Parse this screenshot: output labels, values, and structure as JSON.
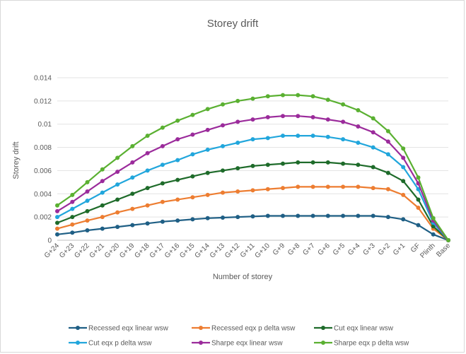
{
  "chart_data": {
    "type": "line",
    "title": "Storey drift",
    "xlabel": "Number of storey",
    "ylabel": "Storey drift",
    "ylim": [
      0,
      0.014
    ],
    "yticks": [
      "0",
      "0.002",
      "0.004",
      "0.006",
      "0.008",
      "0.01",
      "0.012",
      "0.014"
    ],
    "grid": true,
    "legend_position": "bottom",
    "categories": [
      "G+24",
      "G+23",
      "G+22",
      "G+21",
      "G+20",
      "G+19",
      "G+18",
      "G+17",
      "G+16",
      "G+15",
      "G+14",
      "G+13",
      "G+12",
      "G+11",
      "G+10",
      "G+9",
      "G+8",
      "G+7",
      "G+6",
      "G+5",
      "G+4",
      "G+3",
      "G+2",
      "G+1",
      "GF",
      "Plinth",
      "Base"
    ],
    "series": [
      {
        "name": "Recessed eqx linear wsw",
        "color": "#1f5f85",
        "values": [
          0.0005,
          0.00065,
          0.00085,
          0.001,
          0.00115,
          0.0013,
          0.00145,
          0.0016,
          0.0017,
          0.0018,
          0.0019,
          0.00195,
          0.002,
          0.00205,
          0.0021,
          0.0021,
          0.0021,
          0.0021,
          0.0021,
          0.0021,
          0.0021,
          0.0021,
          0.002,
          0.0018,
          0.0013,
          0.0005,
          0
        ]
      },
      {
        "name": "Recessed eqx p delta wsw",
        "color": "#ed7d31",
        "values": [
          0.001,
          0.00135,
          0.0017,
          0.002,
          0.0024,
          0.0027,
          0.003,
          0.0033,
          0.0035,
          0.0037,
          0.0039,
          0.0041,
          0.0042,
          0.0043,
          0.0044,
          0.0045,
          0.0046,
          0.0046,
          0.0046,
          0.0046,
          0.0046,
          0.0045,
          0.0044,
          0.0039,
          0.0028,
          0.001,
          0
        ]
      },
      {
        "name": "Cut eqx linear wsw",
        "color": "#1e6b2a",
        "values": [
          0.0015,
          0.002,
          0.0025,
          0.003,
          0.0035,
          0.004,
          0.0045,
          0.0049,
          0.0052,
          0.0055,
          0.0058,
          0.006,
          0.0062,
          0.0064,
          0.0065,
          0.0066,
          0.0067,
          0.0067,
          0.0067,
          0.0066,
          0.0065,
          0.0063,
          0.0058,
          0.0051,
          0.0035,
          0.0012,
          0
        ]
      },
      {
        "name": "Cut eqx p delta wsw",
        "color": "#21a6dc",
        "values": [
          0.002,
          0.0027,
          0.0034,
          0.0041,
          0.0048,
          0.0054,
          0.006,
          0.0065,
          0.0069,
          0.0074,
          0.0078,
          0.0081,
          0.0084,
          0.0087,
          0.0088,
          0.009,
          0.009,
          0.009,
          0.0089,
          0.0087,
          0.0084,
          0.008,
          0.0074,
          0.0063,
          0.0044,
          0.0015,
          0
        ]
      },
      {
        "name": "Sharpe eqx linear wsw",
        "color": "#9b2b9b",
        "values": [
          0.0025,
          0.0033,
          0.0042,
          0.0051,
          0.0059,
          0.0067,
          0.0075,
          0.0081,
          0.0087,
          0.0091,
          0.0095,
          0.0099,
          0.0102,
          0.0104,
          0.0106,
          0.0107,
          0.0107,
          0.0106,
          0.0104,
          0.0102,
          0.0098,
          0.0093,
          0.0085,
          0.0071,
          0.0049,
          0.0017,
          0
        ]
      },
      {
        "name": "Sharpe eqx p delta wsw",
        "color": "#5ab031",
        "values": [
          0.003,
          0.0039,
          0.005,
          0.0061,
          0.0071,
          0.0081,
          0.009,
          0.0097,
          0.0103,
          0.0108,
          0.0113,
          0.0117,
          0.012,
          0.0122,
          0.0124,
          0.0125,
          0.0125,
          0.0124,
          0.0121,
          0.0117,
          0.0112,
          0.0105,
          0.0094,
          0.0079,
          0.0054,
          0.0019,
          0
        ]
      }
    ]
  }
}
